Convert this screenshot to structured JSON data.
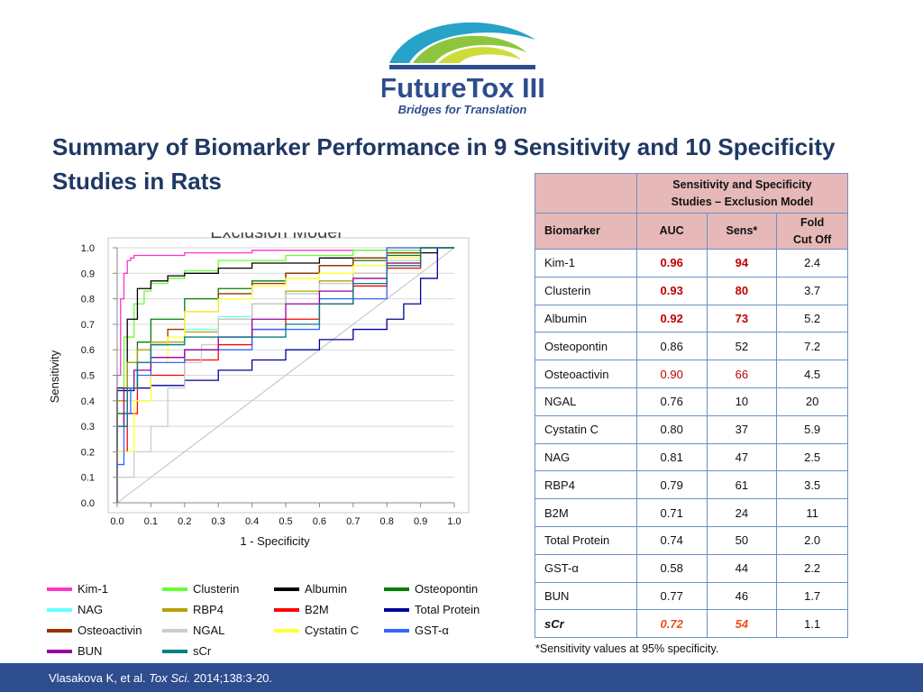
{
  "logo": {
    "name": "FutureTox III",
    "tagline": "Bridges for Translation",
    "colors": {
      "navy": "#2e4d8f",
      "teal": "#27a3c9",
      "green": "#8cc63f",
      "lime": "#cddc39"
    }
  },
  "title": "Summary of Biomarker Performance in 9 Sensitivity and 10 Specificity Studies in Rats",
  "chart_data": {
    "type": "line",
    "title": "Exclusion Model",
    "xlabel": "1 - Specificity",
    "ylabel": "Sensitivity",
    "xlim": [
      0,
      1
    ],
    "ylim": [
      0,
      1
    ],
    "x_ticks": [
      "0.0",
      "0.1",
      "0.2",
      "0.3",
      "0.4",
      "0.5",
      "0.6",
      "0.7",
      "0.8",
      "0.9",
      "1.0"
    ],
    "y_ticks": [
      "0.0",
      "0.1",
      "0.2",
      "0.3",
      "0.4",
      "0.5",
      "0.6",
      "0.7",
      "0.8",
      "0.9",
      "1.0"
    ],
    "grid": "horizontal",
    "reference_line": "diagonal",
    "series": [
      {
        "name": "Kim-1",
        "color": "#ff33cc",
        "x": [
          0,
          0.01,
          0.02,
          0.03,
          0.04,
          0.05,
          0.1,
          0.2,
          0.4,
          0.6,
          0.8,
          1.0
        ],
        "y": [
          0,
          0.5,
          0.8,
          0.9,
          0.95,
          0.96,
          0.97,
          0.97,
          0.98,
          0.99,
          0.99,
          1.0
        ]
      },
      {
        "name": "Clusterin",
        "color": "#66ff33",
        "x": [
          0,
          0.02,
          0.05,
          0.08,
          0.1,
          0.15,
          0.2,
          0.3,
          0.5,
          0.7,
          0.9,
          1.0
        ],
        "y": [
          0,
          0.4,
          0.65,
          0.78,
          0.83,
          0.86,
          0.88,
          0.91,
          0.95,
          0.97,
          0.99,
          1.0
        ]
      },
      {
        "name": "Albumin",
        "color": "#000000",
        "x": [
          0,
          0.03,
          0.06,
          0.1,
          0.15,
          0.2,
          0.3,
          0.4,
          0.6,
          0.8,
          0.95,
          1.0
        ],
        "y": [
          0,
          0.45,
          0.72,
          0.84,
          0.87,
          0.89,
          0.9,
          0.92,
          0.94,
          0.96,
          0.98,
          1.0
        ]
      },
      {
        "name": "Osteopontin",
        "color": "#008000",
        "x": [
          0,
          0.03,
          0.06,
          0.1,
          0.2,
          0.3,
          0.4,
          0.5,
          0.6,
          0.7,
          0.8,
          0.9,
          1.0
        ],
        "y": [
          0,
          0.35,
          0.55,
          0.63,
          0.72,
          0.8,
          0.84,
          0.87,
          0.9,
          0.93,
          0.95,
          0.97,
          1.0
        ]
      },
      {
        "name": "NAG",
        "color": "#66ffff",
        "x": [
          0,
          0.03,
          0.06,
          0.1,
          0.2,
          0.3,
          0.4,
          0.5,
          0.6,
          0.7,
          0.8,
          0.9,
          1.0
        ],
        "y": [
          0,
          0.3,
          0.45,
          0.55,
          0.62,
          0.68,
          0.73,
          0.78,
          0.82,
          0.86,
          0.9,
          0.95,
          1.0
        ]
      },
      {
        "name": "RBP4",
        "color": "#b8a000",
        "x": [
          0,
          0.03,
          0.06,
          0.1,
          0.2,
          0.3,
          0.4,
          0.5,
          0.6,
          0.7,
          0.8,
          0.9,
          1.0
        ],
        "y": [
          0,
          0.4,
          0.55,
          0.6,
          0.63,
          0.67,
          0.72,
          0.78,
          0.83,
          0.87,
          0.9,
          0.94,
          1.0
        ]
      },
      {
        "name": "B2M",
        "color": "#ff0000",
        "x": [
          0,
          0.03,
          0.06,
          0.1,
          0.2,
          0.3,
          0.4,
          0.5,
          0.6,
          0.7,
          0.8,
          0.9,
          1.0
        ],
        "y": [
          0,
          0.2,
          0.35,
          0.45,
          0.5,
          0.56,
          0.62,
          0.68,
          0.72,
          0.78,
          0.85,
          0.92,
          1.0
        ]
      },
      {
        "name": "Total Protein",
        "color": "#000099",
        "x": [
          0,
          0.05,
          0.1,
          0.2,
          0.3,
          0.4,
          0.5,
          0.6,
          0.7,
          0.8,
          0.85,
          0.9,
          0.95,
          1.0
        ],
        "y": [
          0,
          0.44,
          0.45,
          0.46,
          0.48,
          0.52,
          0.56,
          0.6,
          0.64,
          0.68,
          0.72,
          0.78,
          0.88,
          1.0
        ]
      },
      {
        "name": "Osteoactivin",
        "color": "#993300",
        "x": [
          0,
          0.03,
          0.06,
          0.1,
          0.15,
          0.2,
          0.3,
          0.4,
          0.5,
          0.6,
          0.7,
          0.8,
          0.9,
          1.0
        ],
        "y": [
          0,
          0.3,
          0.45,
          0.55,
          0.62,
          0.68,
          0.75,
          0.82,
          0.86,
          0.9,
          0.93,
          0.96,
          0.98,
          1.0
        ]
      },
      {
        "name": "NGAL",
        "color": "#cccccc",
        "x": [
          0,
          0.05,
          0.1,
          0.15,
          0.2,
          0.25,
          0.3,
          0.4,
          0.5,
          0.6,
          0.7,
          0.8,
          0.9,
          1.0
        ],
        "y": [
          0,
          0.1,
          0.2,
          0.3,
          0.45,
          0.55,
          0.62,
          0.72,
          0.78,
          0.82,
          0.86,
          0.9,
          0.95,
          1.0
        ]
      },
      {
        "name": "Cystatin C",
        "color": "#ffff33",
        "x": [
          0,
          0.05,
          0.1,
          0.15,
          0.2,
          0.3,
          0.4,
          0.5,
          0.6,
          0.7,
          0.8,
          0.9,
          1.0
        ],
        "y": [
          0,
          0.2,
          0.4,
          0.55,
          0.65,
          0.75,
          0.8,
          0.85,
          0.88,
          0.9,
          0.93,
          0.96,
          1.0
        ]
      },
      {
        "name": "GST-α",
        "color": "#3366ff",
        "x": [
          0,
          0.02,
          0.04,
          0.06,
          0.1,
          0.2,
          0.4,
          0.6,
          0.8,
          1.0
        ],
        "y": [
          0,
          0.15,
          0.35,
          0.45,
          0.5,
          0.55,
          0.6,
          0.68,
          0.8,
          1.0
        ]
      },
      {
        "name": "BUN",
        "color": "#990099",
        "x": [
          0,
          0.02,
          0.05,
          0.1,
          0.2,
          0.3,
          0.4,
          0.5,
          0.6,
          0.7,
          0.8,
          0.9,
          1.0
        ],
        "y": [
          0,
          0.3,
          0.45,
          0.52,
          0.57,
          0.6,
          0.65,
          0.72,
          0.78,
          0.83,
          0.88,
          0.94,
          1.0
        ]
      },
      {
        "name": "sCr",
        "color": "#008080",
        "x": [
          0,
          0.03,
          0.06,
          0.1,
          0.2,
          0.3,
          0.4,
          0.5,
          0.6,
          0.7,
          0.8,
          0.9,
          1.0
        ],
        "y": [
          0,
          0.3,
          0.45,
          0.55,
          0.62,
          0.65,
          0.65,
          0.65,
          0.7,
          0.78,
          0.86,
          0.93,
          1.0
        ]
      }
    ]
  },
  "legend": [
    {
      "name": "Kim-1",
      "color": "#ff33cc"
    },
    {
      "name": "Clusterin",
      "color": "#66ff33"
    },
    {
      "name": "Albumin",
      "color": "#000000"
    },
    {
      "name": "Osteopontin",
      "color": "#008000"
    },
    {
      "name": "NAG",
      "color": "#66ffff"
    },
    {
      "name": "RBP4",
      "color": "#b8a000"
    },
    {
      "name": "B2M",
      "color": "#ff0000"
    },
    {
      "name": "Total Protein",
      "color": "#000099"
    },
    {
      "name": "Osteoactivin",
      "color": "#993300"
    },
    {
      "name": "NGAL",
      "color": "#cccccc"
    },
    {
      "name": "Cystatin C",
      "color": "#ffff33"
    },
    {
      "name": "GST-α",
      "color": "#3366ff"
    },
    {
      "name": "BUN",
      "color": "#990099"
    },
    {
      "name": "sCr",
      "color": "#008080"
    }
  ],
  "table": {
    "group_header_line1": "Sensitivity and Specificity",
    "group_header_line2": "Studies – Exclusion Model",
    "col_biomarker": "Biomarker",
    "col_auc": "AUC",
    "col_sens": "Sens*",
    "col_fold_line1": "Fold",
    "col_fold_line2": "Cut Off",
    "rows": [
      {
        "biomarker": "Kim-1",
        "auc": "0.96",
        "sens": "94",
        "fold": "2.4"
      },
      {
        "biomarker": "Clusterin",
        "auc": "0.93",
        "sens": "80",
        "fold": "3.7"
      },
      {
        "biomarker": "Albumin",
        "auc": "0.92",
        "sens": "73",
        "fold": "5.2"
      },
      {
        "biomarker": "Osteopontin",
        "auc": "0.86",
        "sens": "52",
        "fold": "7.2"
      },
      {
        "biomarker": "Osteoactivin",
        "auc": "0.90",
        "sens": "66",
        "fold": "4.5"
      },
      {
        "biomarker": "NGAL",
        "auc": "0.76",
        "sens": "10",
        "fold": "20"
      },
      {
        "biomarker": "Cystatin C",
        "auc": "0.80",
        "sens": "37",
        "fold": "5.9"
      },
      {
        "biomarker": "NAG",
        "auc": "0.81",
        "sens": "47",
        "fold": "2.5"
      },
      {
        "biomarker": "RBP4",
        "auc": "0.79",
        "sens": "61",
        "fold": "3.5"
      },
      {
        "biomarker": "B2M",
        "auc": "0.71",
        "sens": "24",
        "fold": "11"
      },
      {
        "biomarker": "Total Protein",
        "auc": "0.74",
        "sens": "50",
        "fold": "2.0"
      },
      {
        "biomarker": "GST-α",
        "auc": "0.58",
        "sens": "44",
        "fold": "2.2"
      },
      {
        "biomarker": "BUN",
        "auc": "0.77",
        "sens": "46",
        "fold": "1.7"
      },
      {
        "biomarker": "sCr",
        "auc": "0.72",
        "sens": "54",
        "fold": "1.1"
      }
    ]
  },
  "footnote": "*Sensitivity values at 95% specificity.",
  "citation": {
    "authors": "Vlasakova K, et al.",
    "journal": "Tox Sci.",
    "details": "2014;138:3-20."
  }
}
